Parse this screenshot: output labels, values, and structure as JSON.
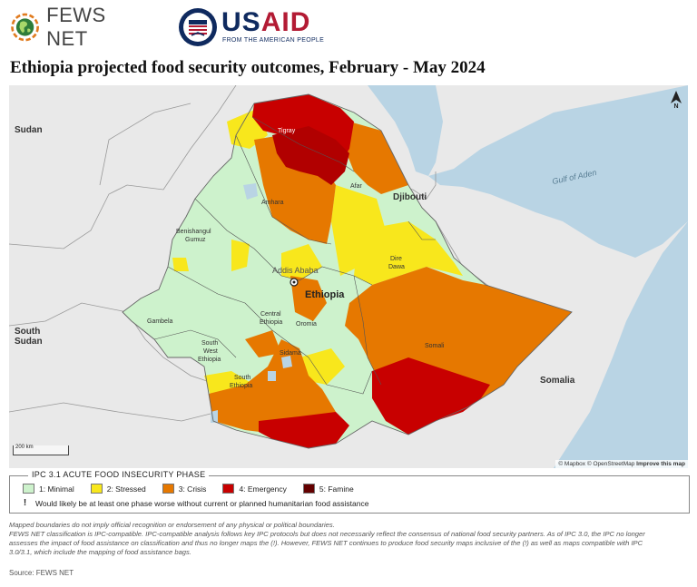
{
  "header": {
    "fews_name": "FEWS NET",
    "usaid_name_us": "US",
    "usaid_name_aid": "AID",
    "usaid_tagline": "FROM THE AMERICAN PEOPLE",
    "usaid_seal_text": "UNITED STATES AGENCY INTERNATIONAL DEVELOPMENT"
  },
  "title": "Ethiopia projected food security outcomes, February - May 2024",
  "map": {
    "labels": {
      "sudan": "Sudan",
      "south_sudan_1": "South",
      "south_sudan_2": "Sudan",
      "somalia": "Somalia",
      "djibouti": "Djibouti",
      "gulf_of_aden": "Gulf of Aden",
      "ethiopia": "Ethiopia",
      "addis": "Addis Ababa",
      "tigray": "Tigray",
      "afar": "Afar",
      "amhara": "Amhara",
      "benishangul_1": "Benishangul",
      "benishangul_2": "Gumuz",
      "gambela": "Gambela",
      "oromia": "Oromia",
      "central_1": "Central",
      "central_2": "Ethiopia",
      "sidama": "Sidama",
      "sw_1": "South",
      "sw_2": "West",
      "sw_3": "Ethiopia",
      "south_1": "South",
      "south_2": "Ethiopia",
      "somali": "Somali",
      "dire_1": "Dire",
      "dire_2": "Dawa"
    },
    "scale_label": "200 km",
    "north_label": "N",
    "attribution": {
      "mapbox": "© Mapbox",
      "osm": "© OpenStreetMap",
      "improve": "Improve this map"
    }
  },
  "legend": {
    "title": "IPC 3.1 ACUTE FOOD INSECURITY PHASE",
    "phases": [
      {
        "label": "1: Minimal",
        "color": "#cdf2cc"
      },
      {
        "label": "2: Stressed",
        "color": "#f8e71c"
      },
      {
        "label": "3: Crisis",
        "color": "#e67800"
      },
      {
        "label": "4: Emergency",
        "color": "#c80000"
      },
      {
        "label": "5: Famine",
        "color": "#640000"
      }
    ],
    "note_mark": "!",
    "note_text": "Would likely be at least one phase worse without current or planned humanitarian food assistance"
  },
  "disclaimer": [
    "Mapped boundaries do not imply official recognition or endorsement of any physical or political boundaries.",
    "FEWS NET classification is IPC-compatible. IPC-compatible analysis follows key IPC protocols but does not necessarily reflect the consensus of national food security partners. As of IPC 3.0, the IPC no longer",
    "assesses the impact of food assistance on classification and thus no longer maps the (!). However, FEWS NET continues to produce food security maps inclusive of the (!) as well as maps compatible with IPC",
    "3.0/3.1, which include the mapping of food assistance bags."
  ],
  "source": "Source: FEWS NET",
  "colors": {
    "land": "#e9e9e9",
    "water": "#b9d4e4",
    "minimal": "#cdf2cc",
    "stressed": "#f8e71c",
    "crisis": "#e67800",
    "emergency": "#c80000",
    "famine": "#640000",
    "usaid_red": "#b31b34",
    "usaid_blue": "#0f2a5f"
  }
}
